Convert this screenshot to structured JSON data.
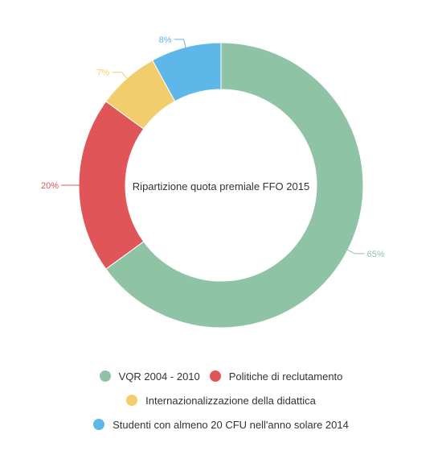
{
  "chart_data": {
    "type": "pie",
    "title": "Ripartizione quota premiale FFO 2015",
    "categories": [
      "VQR 2004 - 2010",
      "Politiche di reclutamento",
      "Internazionalizzazione della didattica",
      "Studenti con almeno 20 CFU nell'anno solare 2014"
    ],
    "values": [
      65,
      20,
      7,
      8
    ],
    "value_labels": [
      "65%",
      "20%",
      "7%",
      "8%"
    ],
    "colors": [
      "#8fc3a6",
      "#e05558",
      "#f2cd6b",
      "#5db7e8"
    ],
    "donut": true,
    "legend_position": "bottom"
  }
}
